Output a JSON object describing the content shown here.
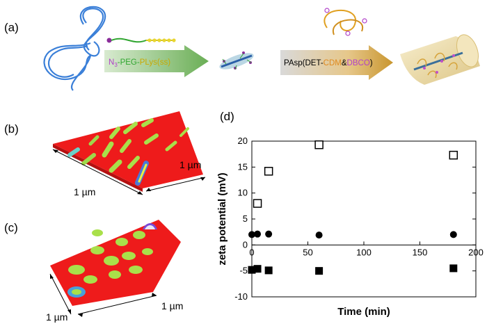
{
  "panels": {
    "a": {
      "label": "(a)",
      "arrow1": {
        "n3": "N",
        "sub3": "3",
        "peg": "-PEG-",
        "plys": "PLys(ss)"
      },
      "arrow2": {
        "pasp": "PAsp(DET-",
        "cdm": "CDM",
        "amp": "&",
        "dbco": "DBCO",
        "close": ")"
      }
    },
    "b": {
      "label": "(b)",
      "scale_x": "1 µm",
      "scale_y": "1 µm"
    },
    "c": {
      "label": "(c)",
      "scale_x": "1 µm",
      "scale_y": "1 µm"
    },
    "d": {
      "label": "(d)"
    }
  },
  "colors": {
    "arrow1": "#7fb86a",
    "arrow2": "#caa24a",
    "afm_surface": "#ee1b1b",
    "text_green": "#2fa52f",
    "text_orange": "#e08a1f",
    "text_purple": "#b040c8"
  },
  "chart_data": {
    "type": "scatter",
    "xlabel": "Time (min)",
    "ylabel": "zeta potential (mV)",
    "xlim": [
      0,
      200
    ],
    "ylim": [
      -10,
      20
    ],
    "xticks": [
      "0",
      "50",
      "100",
      "150",
      "200"
    ],
    "yticks": [
      "-10",
      "-5",
      "0",
      "5",
      "10",
      "15",
      "20"
    ],
    "grid": false,
    "series": [
      {
        "marker": "open-square",
        "x": [
          5,
          15,
          60,
          180
        ],
        "y": [
          8,
          14.2,
          19.3,
          17.3
        ]
      },
      {
        "marker": "filled-circle",
        "x": [
          0,
          5,
          15,
          60,
          180
        ],
        "y": [
          2,
          2.1,
          2.1,
          1.9,
          2
        ]
      },
      {
        "marker": "filled-square",
        "x": [
          0,
          5,
          15,
          60,
          180
        ],
        "y": [
          -4.8,
          -4.6,
          -4.9,
          -5,
          -4.5
        ]
      }
    ]
  }
}
